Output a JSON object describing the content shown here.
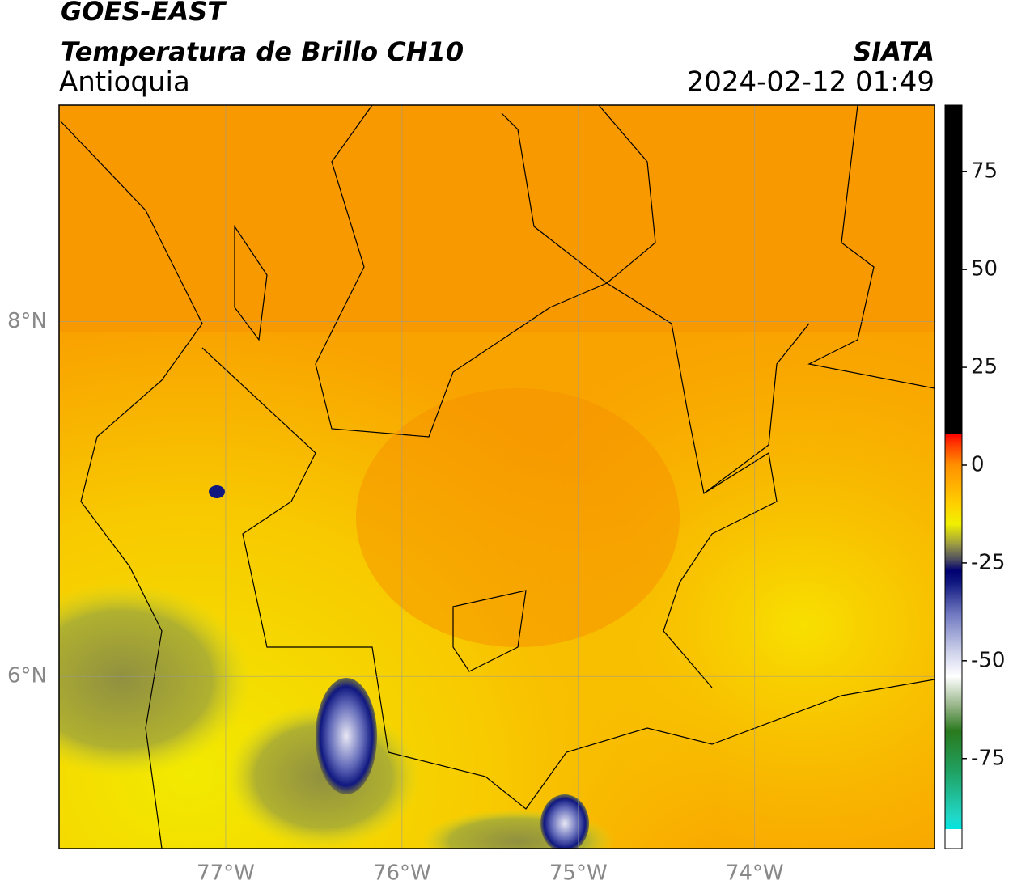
{
  "header": {
    "line1": "GOES-EAST",
    "line2": "Temperatura de Brillo CH10",
    "region": "Antioquia",
    "source": "SIATA",
    "datetime": "2024-02-12 01:49"
  },
  "map": {
    "xlim": [
      -77.945,
      -72.98
    ],
    "ylim": [
      5.03,
      9.22
    ],
    "xticks": [
      {
        "value": -77,
        "label": "77°W"
      },
      {
        "value": -76,
        "label": "76°W"
      },
      {
        "value": -75,
        "label": "75°W"
      },
      {
        "value": -74,
        "label": "74°W"
      }
    ],
    "yticks": [
      {
        "value": 8,
        "label": "8°N"
      },
      {
        "value": 6,
        "label": "6°N"
      }
    ],
    "grid": true
  },
  "colorbar": {
    "clim": [
      -98,
      92
    ],
    "ticks": [
      75,
      50,
      25,
      0,
      -25,
      -50,
      -75
    ],
    "stops": [
      [
        -98,
        "#ffffff"
      ],
      [
        -93,
        "#ffffff"
      ],
      [
        -93,
        "#00e5e0"
      ],
      [
        -90,
        "#20d8c8"
      ],
      [
        -78,
        "#20a060"
      ],
      [
        -68,
        "#2a7a1e"
      ],
      [
        -62,
        "#8fb080"
      ],
      [
        -54,
        "#ffffff"
      ],
      [
        -48,
        "#d0d4ec"
      ],
      [
        -38,
        "#7078c0"
      ],
      [
        -30,
        "#101880"
      ],
      [
        -27,
        "#000070"
      ],
      [
        -24,
        "#505060"
      ],
      [
        -20,
        "#a0a040"
      ],
      [
        -15,
        "#f0f000"
      ],
      [
        -10,
        "#ffd000"
      ],
      [
        0,
        "#ff9000"
      ],
      [
        5,
        "#ff4000"
      ],
      [
        8,
        "#ff0000"
      ],
      [
        8,
        "#000000"
      ],
      [
        92,
        "#000000"
      ]
    ]
  }
}
